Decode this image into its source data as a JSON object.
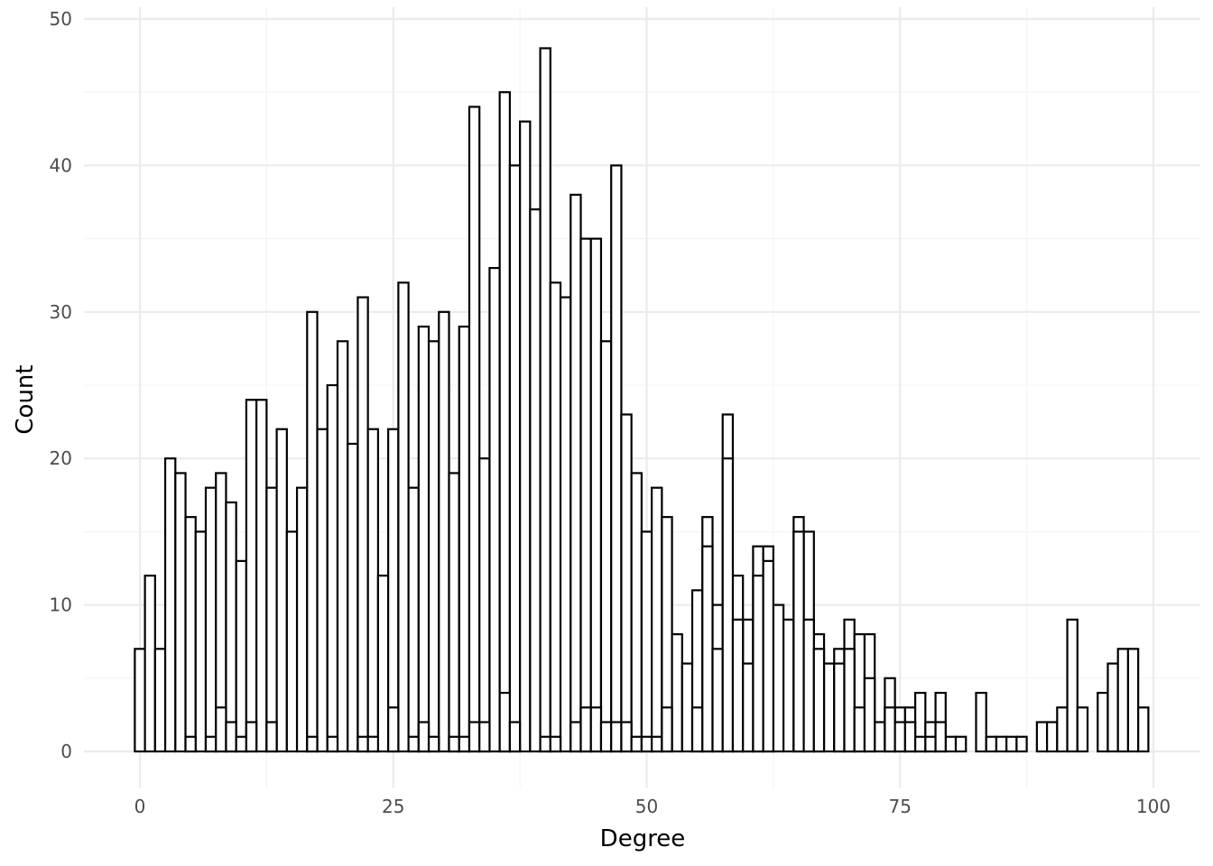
{
  "chart_data": {
    "type": "bar",
    "xlabel": "Degree",
    "ylabel": "Count",
    "xlim": [
      -2.5,
      102.5
    ],
    "ylim": [
      -2.5,
      50
    ],
    "x_ticks": [
      0,
      25,
      50,
      75,
      100
    ],
    "y_ticks": [
      0,
      10,
      20,
      30,
      40,
      50
    ],
    "grid": true,
    "bar_fill": "#ffffff",
    "bar_outline": "#000000",
    "bin_width": 1,
    "series": [
      {
        "values": [
          {
            "x": 0,
            "count": 7
          },
          {
            "x": 1,
            "count": 12
          },
          {
            "x": 2,
            "count": 7
          },
          {
            "x": 3,
            "count": 20
          },
          {
            "x": 4,
            "count": 19
          },
          {
            "x": 5,
            "count": 16
          },
          {
            "x": 6,
            "count": 15
          },
          {
            "x": 7,
            "count": 18
          },
          {
            "x": 8,
            "count": 19
          },
          {
            "x": 9,
            "count": 17
          },
          {
            "x": 10,
            "count": 13
          },
          {
            "x": 11,
            "count": 24
          },
          {
            "x": 12,
            "count": 24
          },
          {
            "x": 13,
            "count": 18
          },
          {
            "x": 14,
            "count": 22
          },
          {
            "x": 15,
            "count": 15
          },
          {
            "x": 16,
            "count": 18
          },
          {
            "x": 17,
            "count": 30
          },
          {
            "x": 18,
            "count": 22
          },
          {
            "x": 19,
            "count": 25
          },
          {
            "x": 20,
            "count": 28
          },
          {
            "x": 21,
            "count": 21
          },
          {
            "x": 22,
            "count": 31
          },
          {
            "x": 23,
            "count": 22
          },
          {
            "x": 24,
            "count": 12
          },
          {
            "x": 25,
            "count": 22
          },
          {
            "x": 26,
            "count": 32
          },
          {
            "x": 27,
            "count": 18
          },
          {
            "x": 28,
            "count": 29
          },
          {
            "x": 29,
            "count": 28
          },
          {
            "x": 30,
            "count": 30
          },
          {
            "x": 31,
            "count": 19
          },
          {
            "x": 32,
            "count": 29
          },
          {
            "x": 33,
            "count": 44
          },
          {
            "x": 34,
            "count": 20
          },
          {
            "x": 35,
            "count": 33
          },
          {
            "x": 36,
            "count": 45
          },
          {
            "x": 37,
            "count": 40
          },
          {
            "x": 38,
            "count": 43
          },
          {
            "x": 39,
            "count": 37
          },
          {
            "x": 40,
            "count": 48
          },
          {
            "x": 41,
            "count": 32
          },
          {
            "x": 42,
            "count": 31
          },
          {
            "x": 43,
            "count": 38
          },
          {
            "x": 44,
            "count": 35
          },
          {
            "x": 45,
            "count": 35
          },
          {
            "x": 46,
            "count": 28
          },
          {
            "x": 47,
            "count": 40
          },
          {
            "x": 48,
            "count": 23
          },
          {
            "x": 49,
            "count": 19
          },
          {
            "x": 50,
            "count": 15
          },
          {
            "x": 51,
            "count": 18
          },
          {
            "x": 52,
            "count": 16
          },
          {
            "x": 53,
            "count": 8
          },
          {
            "x": 54,
            "count": 6
          },
          {
            "x": 55,
            "count": 11
          },
          {
            "x": 56,
            "count": 16
          },
          {
            "x": 57,
            "count": 10
          },
          {
            "x": 58,
            "count": 23
          },
          {
            "x": 59,
            "count": 12
          },
          {
            "x": 60,
            "count": 9
          },
          {
            "x": 61,
            "count": 14
          },
          {
            "x": 62,
            "count": 14
          },
          {
            "x": 63,
            "count": 10
          },
          {
            "x": 64,
            "count": 9
          },
          {
            "x": 65,
            "count": 16
          },
          {
            "x": 66,
            "count": 15
          },
          {
            "x": 67,
            "count": 8
          },
          {
            "x": 68,
            "count": 6
          },
          {
            "x": 69,
            "count": 7
          },
          {
            "x": 70,
            "count": 9
          },
          {
            "x": 71,
            "count": 8
          },
          {
            "x": 72,
            "count": 8
          },
          {
            "x": 73,
            "count": 2
          },
          {
            "x": 74,
            "count": 5
          },
          {
            "x": 75,
            "count": 3
          },
          {
            "x": 76,
            "count": 3
          },
          {
            "x": 77,
            "count": 4
          },
          {
            "x": 78,
            "count": 2
          },
          {
            "x": 79,
            "count": 4
          },
          {
            "x": 80,
            "count": 1
          },
          {
            "x": 81,
            "count": 1
          },
          {
            "x": 83,
            "count": 4
          },
          {
            "x": 84,
            "count": 1
          },
          {
            "x": 85,
            "count": 1
          },
          {
            "x": 86,
            "count": 1
          },
          {
            "x": 87,
            "count": 1
          },
          {
            "x": 89,
            "count": 2
          },
          {
            "x": 90,
            "count": 2
          },
          {
            "x": 91,
            "count": 3
          },
          {
            "x": 92,
            "count": 9
          },
          {
            "x": 93,
            "count": 3
          },
          {
            "x": 95,
            "count": 4
          },
          {
            "x": 96,
            "count": 6
          },
          {
            "x": 97,
            "count": 7
          },
          {
            "x": 98,
            "count": 7
          },
          {
            "x": 99,
            "count": 3
          }
        ]
      },
      {
        "values": [
          {
            "x": 5,
            "count": 1
          },
          {
            "x": 7,
            "count": 1
          },
          {
            "x": 8,
            "count": 3
          },
          {
            "x": 9,
            "count": 2
          },
          {
            "x": 10,
            "count": 1
          },
          {
            "x": 11,
            "count": 2
          },
          {
            "x": 13,
            "count": 2
          },
          {
            "x": 17,
            "count": 1
          },
          {
            "x": 19,
            "count": 1
          },
          {
            "x": 22,
            "count": 1
          },
          {
            "x": 23,
            "count": 1
          },
          {
            "x": 25,
            "count": 3
          },
          {
            "x": 27,
            "count": 1
          },
          {
            "x": 28,
            "count": 2
          },
          {
            "x": 29,
            "count": 1
          },
          {
            "x": 31,
            "count": 1
          },
          {
            "x": 32,
            "count": 1
          },
          {
            "x": 33,
            "count": 2
          },
          {
            "x": 34,
            "count": 2
          },
          {
            "x": 36,
            "count": 4
          },
          {
            "x": 37,
            "count": 2
          },
          {
            "x": 40,
            "count": 1
          },
          {
            "x": 41,
            "count": 1
          },
          {
            "x": 43,
            "count": 2
          },
          {
            "x": 44,
            "count": 3
          },
          {
            "x": 45,
            "count": 3
          },
          {
            "x": 46,
            "count": 2
          },
          {
            "x": 47,
            "count": 2
          },
          {
            "x": 48,
            "count": 2
          },
          {
            "x": 49,
            "count": 1
          },
          {
            "x": 50,
            "count": 1
          },
          {
            "x": 51,
            "count": 1
          },
          {
            "x": 52,
            "count": 3
          },
          {
            "x": 55,
            "count": 3
          },
          {
            "x": 56,
            "count": 14
          },
          {
            "x": 57,
            "count": 7
          },
          {
            "x": 58,
            "count": 20
          },
          {
            "x": 59,
            "count": 9
          },
          {
            "x": 60,
            "count": 6
          },
          {
            "x": 61,
            "count": 12
          },
          {
            "x": 62,
            "count": 13
          },
          {
            "x": 65,
            "count": 15
          },
          {
            "x": 66,
            "count": 9
          },
          {
            "x": 67,
            "count": 7
          },
          {
            "x": 69,
            "count": 6
          },
          {
            "x": 70,
            "count": 7
          },
          {
            "x": 71,
            "count": 3
          },
          {
            "x": 72,
            "count": 5
          },
          {
            "x": 74,
            "count": 3
          },
          {
            "x": 75,
            "count": 2
          },
          {
            "x": 76,
            "count": 2
          },
          {
            "x": 77,
            "count": 1
          },
          {
            "x": 78,
            "count": 1
          },
          {
            "x": 79,
            "count": 2
          }
        ]
      }
    ]
  }
}
